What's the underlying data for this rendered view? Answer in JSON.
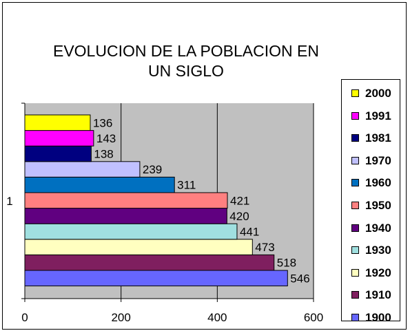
{
  "chart_data": {
    "type": "bar",
    "orientation": "horizontal",
    "title": "EVOLUCION DE LA POBLACION EN\nUN SIGLO",
    "categories": [
      "1"
    ],
    "xlim": [
      0,
      600
    ],
    "x_ticks": [
      "0",
      "200",
      "400",
      "600"
    ],
    "grid": true,
    "legend_position": "right",
    "series": [
      {
        "name": "1900",
        "value": 546,
        "label": "546",
        "color": "#6666ff"
      },
      {
        "name": "1910",
        "value": 518,
        "label": "518",
        "color": "#7f1f5f"
      },
      {
        "name": "1920",
        "value": 473,
        "label": "473",
        "color": "#ffffc0"
      },
      {
        "name": "1930",
        "value": 441,
        "label": "441",
        "color": "#a0e0e0"
      },
      {
        "name": "1940",
        "value": 420,
        "label": "420",
        "color": "#600080"
      },
      {
        "name": "1950",
        "value": 421,
        "label": "421",
        "color": "#ff8080"
      },
      {
        "name": "1960",
        "value": 311,
        "label": "311",
        "color": "#0070c0"
      },
      {
        "name": "1970",
        "value": 239,
        "label": "239",
        "color": "#c0c0ff"
      },
      {
        "name": "1981",
        "value": 138,
        "label": "138",
        "color": "#000080"
      },
      {
        "name": "1991",
        "value": 143,
        "label": "143",
        "color": "#ff00ff"
      },
      {
        "name": "2000",
        "value": 136,
        "label": "136",
        "color": "#ffff00"
      }
    ]
  },
  "colors": {
    "plot_background": "#c0c0c0",
    "gridline": "#000000"
  }
}
